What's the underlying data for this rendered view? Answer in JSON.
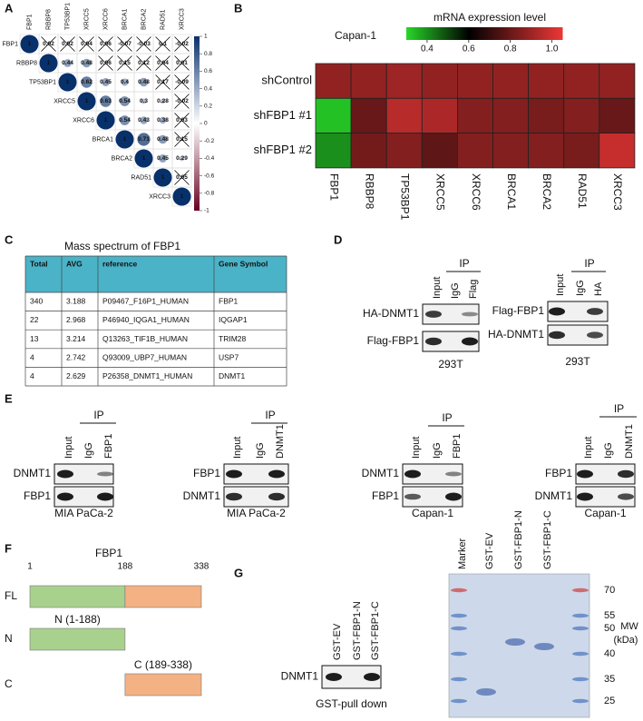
{
  "panel_labels": [
    "A",
    "B",
    "C",
    "D",
    "E",
    "F",
    "G"
  ],
  "correlation": {
    "genes": [
      "FBP1",
      "RBBP8",
      "TP53BP1",
      "XRCC5",
      "XRCC6",
      "BRCA1",
      "BRCA2",
      "RAD51",
      "XRCC3"
    ],
    "matrix": [
      [
        1,
        0.02,
        0.02,
        0.04,
        0.06,
        -0.07,
        -0.03,
        0.1,
        -0.02
      ],
      [
        1,
        0.44,
        0.48,
        0.06,
        0.15,
        0.12,
        0.04,
        0.01
      ],
      [
        1,
        0.62,
        0.45,
        0.4,
        0.48,
        0.17,
        -0.09
      ],
      [
        1,
        0.63,
        0.54,
        0.3,
        0.28,
        -0.02
      ],
      [
        1,
        0.54,
        0.43,
        0.38,
        0.03
      ],
      [
        1,
        0.71,
        0.48,
        0.15
      ],
      [
        1,
        0.45,
        0.29
      ],
      [
        1,
        0.05
      ],
      [
        1
      ]
    ],
    "lim": [
      -1,
      1
    ],
    "ticks": [
      1,
      0.8,
      0.6,
      0.4,
      0.2,
      0,
      -0.2,
      -0.4,
      -0.6,
      -0.8,
      -1
    ]
  },
  "heatmap": {
    "title": "mRNA expression level",
    "cell_line": "Capan-1",
    "rows": [
      "shControl",
      "shFBP1 #1",
      "shFBP1 #2"
    ],
    "columns": [
      "FBP1",
      "RBBP8",
      "TP53BP1",
      "XRCC5",
      "XRCC6",
      "BRCA1",
      "BRCA2",
      "RAD51",
      "XRCC3"
    ],
    "values": [
      [
        0.88,
        0.88,
        0.9,
        0.88,
        0.88,
        0.88,
        0.88,
        0.88,
        0.88
      ],
      [
        0.33,
        0.8,
        0.95,
        0.93,
        0.85,
        0.85,
        0.83,
        0.85,
        0.8
      ],
      [
        0.4,
        0.82,
        0.85,
        0.78,
        0.85,
        0.85,
        0.85,
        0.83,
        0.98
      ]
    ],
    "lim": [
      0.3,
      1.05
    ],
    "ticks": [
      0.4,
      0.6,
      0.8,
      {
        "value": 1,
        "label": "1.0"
      }
    ]
  },
  "mass_spec": {
    "title": "Mass spectrum of  FBP1",
    "header": [
      "Total",
      "AVG",
      "reference",
      "Gene Symbol"
    ],
    "rows": [
      [
        340,
        3.188,
        "P09467_F16P1_HUMAN",
        "FBP1"
      ],
      [
        22,
        2.968,
        "P46940_IQGA1_HUMAN",
        "IQGAP1"
      ],
      [
        13,
        3.214,
        "Q13263_TIF1B_HUMAN",
        "TRIM28"
      ],
      [
        4,
        2.742,
        "Q93009_UBP7_HUMAN",
        "USP7"
      ],
      [
        4,
        2.629,
        "P26358_DNMT1_HUMAN",
        "DNMT1"
      ]
    ]
  },
  "blots": [
    {
      "ip": "IP",
      "lanes": [
        "Input",
        "IgG",
        "Flag"
      ],
      "proteins": [
        "HA-DNMT1",
        "Flag-FBP1"
      ],
      "cell": "293T"
    },
    {
      "ip": "IP",
      "lanes": [
        "Input",
        "IgG",
        "HA"
      ],
      "proteins": [
        "Flag-FBP1",
        "HA-DNMT1"
      ],
      "cell": "293T"
    },
    {
      "ip": "IP",
      "lanes": [
        "Input",
        "IgG",
        "FBP1"
      ],
      "proteins": [
        "DNMT1",
        "FBP1"
      ],
      "cell": "MIA PaCa-2"
    },
    {
      "ip": "IP",
      "lanes": [
        "Input",
        "IgG",
        "DNMT1"
      ],
      "proteins": [
        "FBP1",
        "DNMT1"
      ],
      "cell": "MIA PaCa-2"
    },
    {
      "ip": "IP",
      "lanes": [
        "Input",
        "IgG",
        "FBP1"
      ],
      "proteins": [
        "DNMT1",
        "FBP1"
      ],
      "cell": "Capan-1"
    },
    {
      "ip": "IP",
      "lanes": [
        "Input",
        "IgG",
        "DNMT1"
      ],
      "proteins": [
        "FBP1",
        "DNMT1"
      ],
      "cell": "Capan-1"
    },
    {
      "lanes": [
        "GST-EV",
        "GST-FBP1-N",
        "GST-FBP1-C"
      ],
      "proteins": [
        "DNMT1"
      ],
      "cell": "GST-pull down"
    }
  ],
  "domains": {
    "protein": "FBP1",
    "start": 1,
    "split": 188,
    "end": 338,
    "rows": [
      {
        "label": "FL"
      },
      {
        "label": "N",
        "name": "N (1-188)"
      },
      {
        "label": "C",
        "name": "C (189-338)"
      }
    ]
  },
  "gel": {
    "lanes": [
      "Marker",
      "GST-EV",
      "GST-FBP1-N",
      "GST-FBP1-C"
    ],
    "mw": [
      70,
      55,
      50,
      40,
      35,
      25
    ],
    "mw_title": "MW",
    "mw_unit": "(kDa)"
  }
}
